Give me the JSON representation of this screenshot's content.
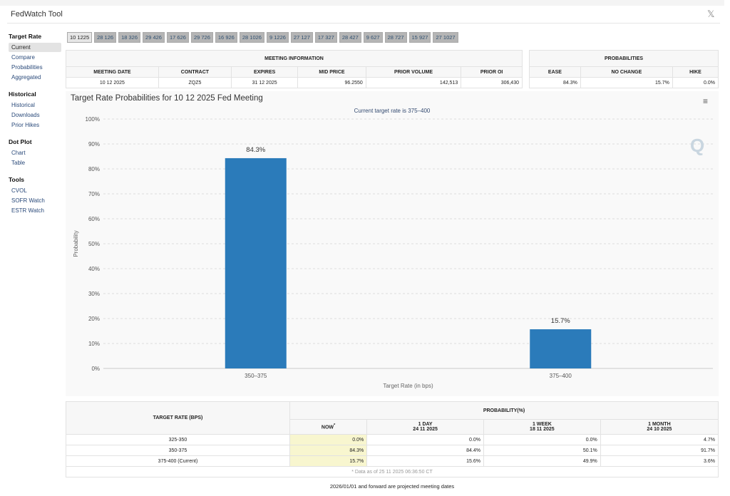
{
  "app": {
    "title": "FedWatch Tool"
  },
  "sidebar": [
    {
      "heading": "Target Rate",
      "items": [
        "Current",
        "Compare",
        "Probabilities",
        "Aggregated"
      ],
      "active": 0
    },
    {
      "heading": "Historical",
      "items": [
        "Historical",
        "Downloads",
        "Prior Hikes"
      ]
    },
    {
      "heading": "Dot Plot",
      "items": [
        "Chart",
        "Table"
      ]
    },
    {
      "heading": "Tools",
      "items": [
        "CVOL",
        "SOFR Watch",
        "ESTR Watch"
      ]
    }
  ],
  "tabs": [
    "10 1225",
    "28 126",
    "18 326",
    "29 426",
    "17 626",
    "29 726",
    "16 926",
    "28 1026",
    "9 1226",
    "27 127",
    "17 327",
    "28 427",
    "9 627",
    "28 727",
    "15 927",
    "27 1027"
  ],
  "meeting_info": {
    "title": "MEETING INFORMATION",
    "headers": [
      "MEETING DATE",
      "CONTRACT",
      "EXPIRES",
      "MID PRICE",
      "PRIOR VOLUME",
      "PRIOR OI"
    ],
    "values": [
      "10 12 2025",
      "ZQZ5",
      "31 12 2025",
      "96.2550",
      "142,513",
      "306,430"
    ]
  },
  "probabilities": {
    "title": "PROBABILITIES",
    "headers": [
      "EASE",
      "NO CHANGE",
      "HIKE"
    ],
    "values": [
      "84.3%",
      "15.7%",
      "0.0%"
    ]
  },
  "chart_data": {
    "type": "bar",
    "title": "Target Rate Probabilities for 10 12 2025 Fed Meeting",
    "subtitle": "Current target rate is 375–400",
    "categories": [
      "350–375",
      "375–400"
    ],
    "values": [
      84.3,
      15.7
    ],
    "data_labels": [
      "84.3%",
      "15.7%"
    ],
    "xlabel": "Target Rate (in bps)",
    "ylabel": "Probability",
    "ylim": [
      0,
      100
    ],
    "yticks": [
      "0%",
      "10%",
      "20%",
      "30%",
      "40%",
      "50%",
      "60%",
      "70%",
      "80%",
      "90%",
      "100%"
    ],
    "grid": true,
    "color": "#2b7bba"
  },
  "bottom_table": {
    "col1": "TARGET RATE (BPS)",
    "group": "PROBABILITY(%)",
    "cols": [
      {
        "l1": "NOW",
        "l2": "*"
      },
      {
        "l1": "1 DAY",
        "l2": "24 11 2025"
      },
      {
        "l1": "1 WEEK",
        "l2": "18 11 2025"
      },
      {
        "l1": "1 MONTH",
        "l2": "24 10 2025"
      }
    ],
    "rows": [
      [
        "325-350",
        "0.0%",
        "0.0%",
        "0.0%",
        "4.7%"
      ],
      [
        "350-375",
        "84.3%",
        "84.4%",
        "50.1%",
        "91.7%"
      ],
      [
        "375-400 (Current)",
        "15.7%",
        "15.6%",
        "49.9%",
        "3.6%"
      ]
    ],
    "footnote": "* Data as of 25 11 2025 06:36:50 CT"
  },
  "note": "2026/01/01 and forward are projected meeting dates"
}
